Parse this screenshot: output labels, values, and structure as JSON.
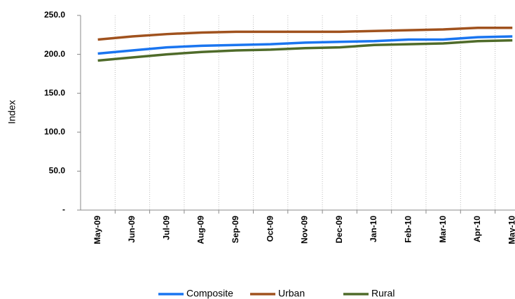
{
  "chart_data": {
    "type": "line",
    "y_label": "Index",
    "categories": [
      "May-09",
      "Jun-09",
      "Jul-09",
      "Aug-09",
      "Sep-09",
      "Oct-09",
      "Nov-09",
      "Dec-09",
      "Jan-10",
      "Feb-10",
      "Mar-10",
      "Apr-10",
      "May-10"
    ],
    "series": [
      {
        "name": "Composite",
        "color": "#1a75f0",
        "values": [
          201,
          205,
          209,
          211,
          212,
          213,
          215,
          216,
          217,
          219,
          219,
          222,
          223
        ]
      },
      {
        "name": "Urban",
        "color": "#a0521e",
        "values": [
          219,
          223,
          226,
          228,
          229,
          229,
          229,
          229,
          230,
          231,
          232,
          234,
          234
        ]
      },
      {
        "name": "Rural",
        "color": "#4f6b2a",
        "values": [
          192,
          196,
          200,
          203,
          205,
          206,
          208,
          209,
          212,
          213,
          214,
          217,
          218
        ]
      }
    ],
    "ylim": [
      0,
      250
    ],
    "yticks": [
      {
        "value": 0,
        "label": "-"
      },
      {
        "value": 50,
        "label": "50.0"
      },
      {
        "value": 100,
        "label": "100.0"
      },
      {
        "value": 150,
        "label": "150.0"
      },
      {
        "value": 200,
        "label": "200.0"
      },
      {
        "value": 250,
        "label": "250.0"
      }
    ],
    "legend": "bottom"
  }
}
